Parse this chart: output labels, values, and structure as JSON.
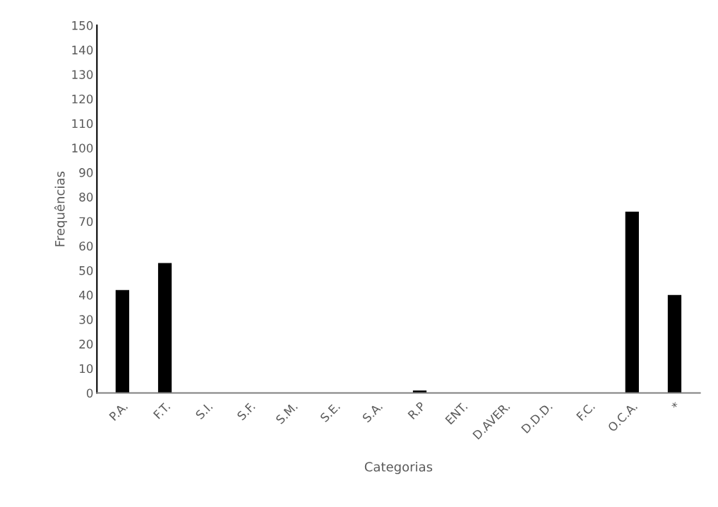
{
  "chart_data": {
    "type": "bar",
    "xlabel": "Categorias",
    "ylabel": "Frequências",
    "categories": [
      "P.A.",
      "F.T.",
      "S.I.",
      "S.F.",
      "S.M.",
      "S.E.",
      "S.A.",
      "R.P",
      "ENT.",
      "D.AVER.",
      "D.D.D.",
      "F.C.",
      "O.C.A.",
      "*"
    ],
    "values": [
      42,
      53,
      0,
      0,
      0,
      0,
      0,
      1,
      0,
      0,
      0,
      0,
      74,
      40
    ],
    "color": "#000000",
    "ylim": [
      0,
      150
    ],
    "yticks": [
      0,
      10,
      20,
      30,
      40,
      50,
      60,
      70,
      80,
      90,
      100,
      110,
      120,
      130,
      140,
      150
    ],
    "grid": false,
    "legend": false
  }
}
